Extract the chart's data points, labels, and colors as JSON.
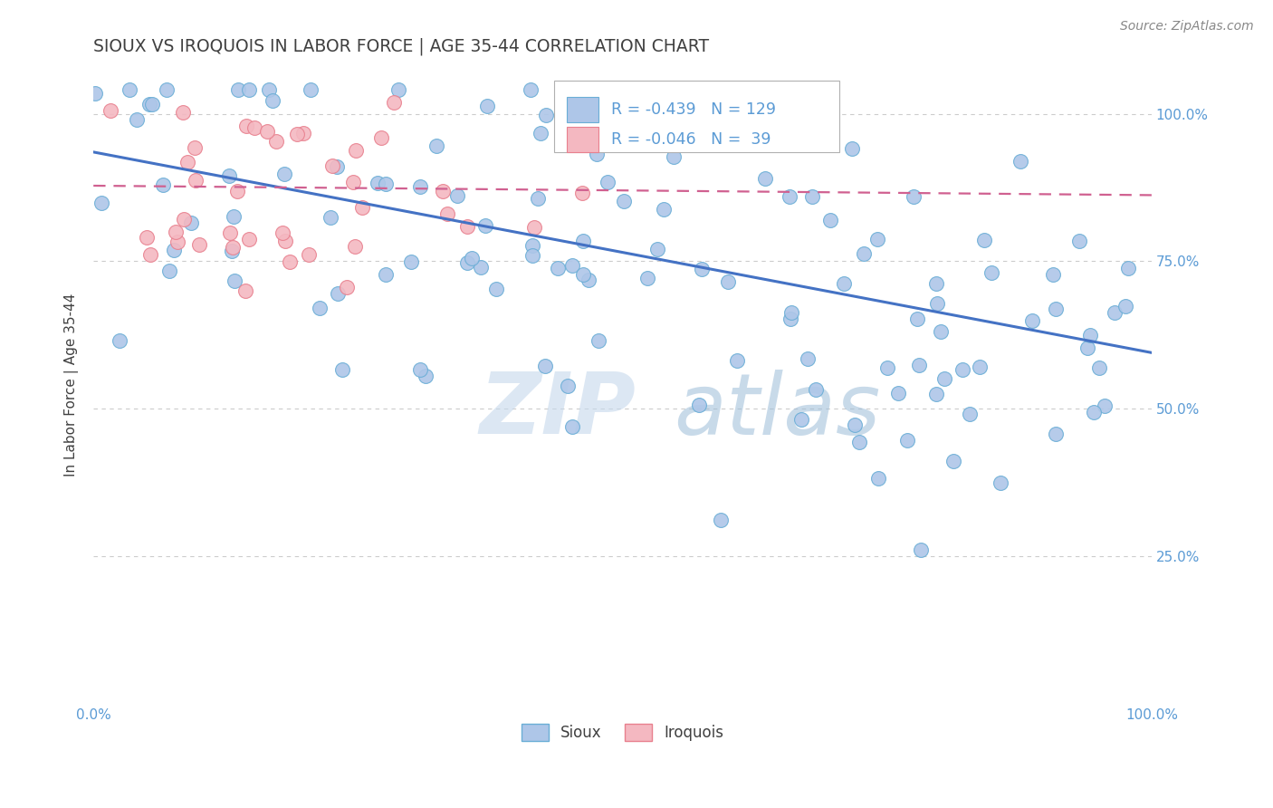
{
  "title": "SIOUX VS IROQUOIS IN LABOR FORCE | AGE 35-44 CORRELATION CHART",
  "source_text": "Source: ZipAtlas.com",
  "ylabel": "In Labor Force | Age 35-44",
  "xlim": [
    0.0,
    1.0
  ],
  "ylim": [
    0.0,
    1.08
  ],
  "xticks": [
    0.0,
    0.1,
    0.2,
    0.3,
    0.4,
    0.5,
    0.6,
    0.7,
    0.8,
    0.9,
    1.0
  ],
  "yticks": [
    0.25,
    0.5,
    0.75,
    1.0
  ],
  "ytick_labels": [
    "25.0%",
    "50.0%",
    "75.0%",
    "100.0%"
  ],
  "sioux_color": "#aec6e8",
  "iroquois_color": "#f4b8c1",
  "sioux_edge_color": "#6aaed6",
  "iroquois_edge_color": "#e8808e",
  "trend_blue": "#4472c4",
  "trend_pink": "#d06090",
  "R_sioux": -0.439,
  "N_sioux": 129,
  "R_iroquois": -0.046,
  "N_iroquois": 39,
  "watermark_zip": "ZIP",
  "watermark_atlas": "atlas",
  "background_color": "#ffffff",
  "grid_color": "#cccccc",
  "title_color": "#404040",
  "label_color": "#5b9bd5",
  "blue_line_y0": 0.935,
  "blue_line_y1": 0.595,
  "pink_line_y0": 0.878,
  "pink_line_y1": 0.862
}
